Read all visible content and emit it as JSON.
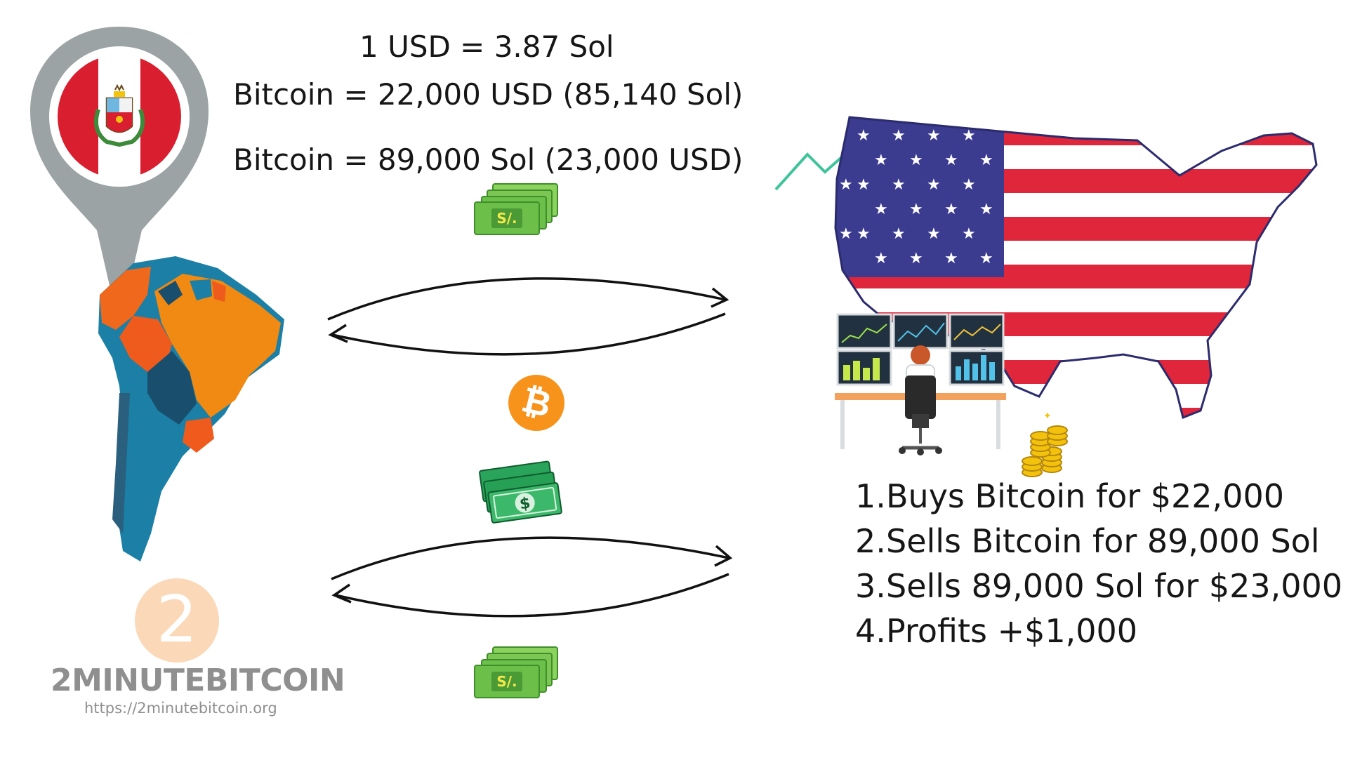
{
  "rates": {
    "usd_to_sol": "1 USD = 3.87 Sol",
    "bitcoin_usa": "Bitcoin = 22,000 USD (85,140 Sol)",
    "bitcoin_peru": "Bitcoin = 89,000 Sol (23,000 USD)"
  },
  "steps": [
    {
      "num": "1.",
      "text": "Buys Bitcoin for $22,000"
    },
    {
      "num": "2.",
      "text": "Sells Bitcoin for 89,000 Sol"
    },
    {
      "num": "3.",
      "text": "Sells 89,000 Sol for $23,000"
    },
    {
      "num": "4.",
      "text": "Profits +$1,000"
    }
  ],
  "currency": {
    "sol_symbol": "S/.",
    "bitcoin_symbol": "₿",
    "dollar_symbol": "$"
  },
  "brand": {
    "logo_numeral": "2",
    "name": "2MINUTEBITCOIN",
    "url": "https://2minutebitcoin.org"
  },
  "colors": {
    "bitcoin_orange": "#f7931a",
    "sol_green": "#6cc04a",
    "usd_green": "#1f9a50",
    "trend_line": "#3ec49a",
    "flag_red": "#e0263a",
    "flag_blue": "#3b3b8f",
    "pin_gray": "#9ba3a4"
  }
}
